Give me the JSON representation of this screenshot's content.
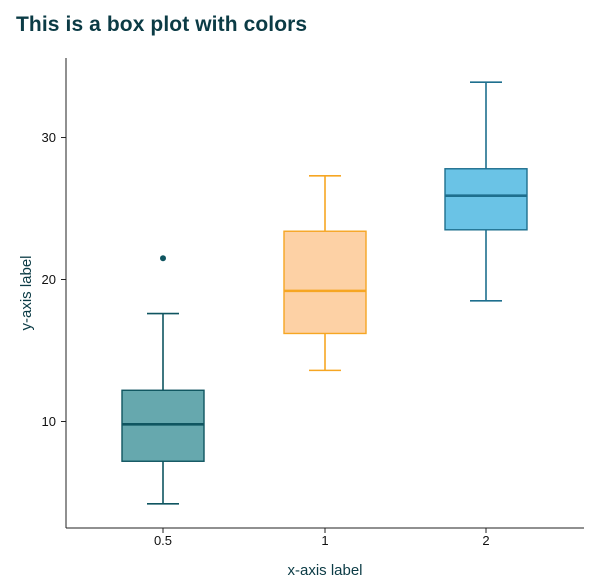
{
  "chart_data": {
    "type": "box",
    "title": "This is a box plot with colors",
    "xlabel": "x-axis label",
    "ylabel": "y-axis label",
    "categories": [
      "0.5",
      "1",
      "2"
    ],
    "y_ticks": [
      10,
      20,
      30
    ],
    "ylim": [
      2.5,
      35.6
    ],
    "grid": false,
    "boxes": [
      {
        "category": "0.5",
        "whisker_low": 4.2,
        "q1": 7.2,
        "median": 9.8,
        "q3": 12.2,
        "whisker_high": 17.6,
        "outliers": [
          21.5
        ],
        "fill": "#66a8ae",
        "stroke": "#0f5560"
      },
      {
        "category": "1",
        "whisker_low": 13.6,
        "q1": 16.2,
        "median": 19.2,
        "q3": 23.4,
        "whisker_high": 27.3,
        "outliers": [],
        "fill": "#fdd1a5",
        "stroke": "#f6a623"
      },
      {
        "category": "2",
        "whisker_low": 18.5,
        "q1": 23.5,
        "median": 25.9,
        "q3": 27.8,
        "whisker_high": 33.9,
        "outliers": [],
        "fill": "#6ac3e6",
        "stroke": "#1e6f8e"
      }
    ]
  }
}
